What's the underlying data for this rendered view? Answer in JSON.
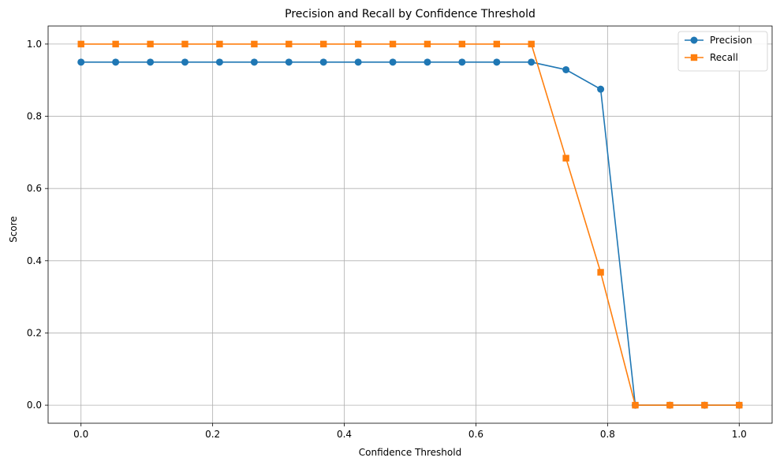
{
  "chart_data": {
    "type": "line",
    "title": "Precision and Recall by Confidence Threshold",
    "xlabel": "Confidence Threshold",
    "ylabel": "Score",
    "xlim": [
      -0.05,
      1.05
    ],
    "ylim": [
      -0.05,
      1.05
    ],
    "xticks": [
      0.0,
      0.2,
      0.4,
      0.6,
      0.8,
      1.0
    ],
    "xtick_labels": [
      "0.0",
      "0.2",
      "0.4",
      "0.6",
      "0.8",
      "1.0"
    ],
    "yticks": [
      0.0,
      0.2,
      0.4,
      0.6,
      0.8,
      1.0
    ],
    "ytick_labels": [
      "0.0",
      "0.2",
      "0.4",
      "0.6",
      "0.8",
      "1.0"
    ],
    "grid": true,
    "legend_position": "top-right",
    "x": [
      0.0,
      0.0526,
      0.1053,
      0.1579,
      0.2105,
      0.2632,
      0.3158,
      0.3684,
      0.4211,
      0.4737,
      0.5263,
      0.5789,
      0.6316,
      0.6842,
      0.7368,
      0.7895,
      0.8421,
      0.8947,
      0.9474,
      1.0
    ],
    "series": [
      {
        "name": "Precision",
        "color": "#1f77b4",
        "marker": "circle",
        "values": [
          0.95,
          0.95,
          0.95,
          0.95,
          0.95,
          0.95,
          0.95,
          0.95,
          0.95,
          0.95,
          0.95,
          0.95,
          0.95,
          0.95,
          0.929,
          0.875,
          0.0,
          0.0,
          0.0,
          0.0
        ]
      },
      {
        "name": "Recall",
        "color": "#ff7f0e",
        "marker": "square",
        "values": [
          1.0,
          1.0,
          1.0,
          1.0,
          1.0,
          1.0,
          1.0,
          1.0,
          1.0,
          1.0,
          1.0,
          1.0,
          1.0,
          1.0,
          0.684,
          0.368,
          0.0,
          0.0,
          0.0,
          0.0
        ]
      }
    ]
  }
}
